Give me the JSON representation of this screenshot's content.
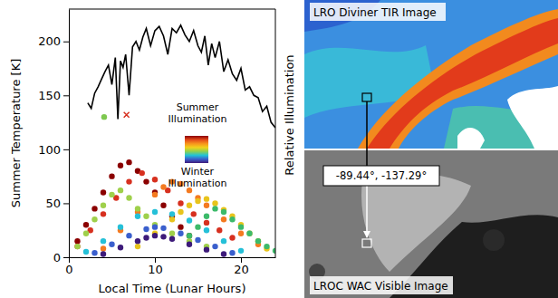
{
  "chart_data": {
    "type": "scatter",
    "xlabel": "Local Time (Lunar Hours)",
    "ylabel": "Summer Temperature [K]",
    "y2label": "Relative Illumination",
    "xlim": [
      0,
      24
    ],
    "xticks": [
      0,
      10,
      20
    ],
    "ylim": [
      0,
      230
    ],
    "yticks": [
      0,
      50,
      100,
      150,
      200
    ],
    "colorbar": {
      "top_label": [
        "Summer",
        "Illumination"
      ],
      "bottom_label": [
        "Winter",
        "Illumination"
      ],
      "colors": [
        "#8b0000",
        "#e34a1a",
        "#f7941d",
        "#f2d21b",
        "#8fd14f",
        "#22c3d6",
        "#3a5fcd",
        "#3d1a7a"
      ]
    },
    "series": [
      {
        "type": "line",
        "color": "#000000",
        "line_style": "solid",
        "x": [
          2.2,
          2.6,
          3.0,
          3.4,
          3.8,
          4.2,
          4.6,
          5.0,
          5.4,
          5.7,
          6.0,
          6.3,
          6.6,
          7.0,
          7.4,
          7.8,
          8.2,
          8.6,
          9.0,
          9.5,
          10.0,
          10.5,
          11.0,
          11.5,
          12.0,
          12.5,
          13.0,
          13.5,
          14.0,
          14.5,
          15.0,
          15.4,
          15.8,
          16.2,
          16.6,
          17.0,
          17.5,
          18.0,
          18.5,
          19.0,
          19.5,
          20.0,
          20.5,
          21.0,
          21.5,
          22.0,
          22.5,
          23.0,
          23.5,
          24.0
        ],
        "values": [
          143,
          138,
          152,
          158,
          165,
          172,
          178,
          160,
          185,
          128,
          182,
          176,
          188,
          150,
          195,
          200,
          192,
          204,
          212,
          196,
          210,
          214,
          205,
          188,
          212,
          208,
          215,
          206,
          200,
          210,
          196,
          190,
          205,
          178,
          198,
          185,
          200,
          172,
          183,
          170,
          164,
          175,
          155,
          158,
          150,
          148,
          135,
          140,
          125,
          120
        ]
      },
      {
        "type": "scatter",
        "color": "#8b0000",
        "marker": "circle",
        "x": [
          1,
          2,
          3,
          4,
          5,
          6,
          7,
          8,
          9,
          10,
          11,
          12,
          13,
          14
        ],
        "values": [
          15,
          30,
          45,
          60,
          75,
          85,
          88,
          80,
          70,
          60,
          48,
          38,
          28,
          20
        ]
      },
      {
        "type": "scatter",
        "color": "#d7301f",
        "marker": "circle",
        "x": [
          1,
          2.5,
          4,
          5.5,
          7,
          8.5,
          10,
          11.5,
          13,
          14.5,
          16,
          17.5,
          19
        ],
        "values": [
          10,
          25,
          40,
          55,
          70,
          78,
          72,
          62,
          50,
          40,
          32,
          25,
          18
        ]
      },
      {
        "type": "scatter",
        "color": "#f47a20",
        "marker": "circle",
        "x": [
          4,
          6,
          8,
          10,
          11,
          12,
          13,
          14,
          15,
          16,
          18,
          20,
          22
        ],
        "values": [
          8,
          25,
          42,
          58,
          65,
          70,
          68,
          62,
          55,
          48,
          35,
          22,
          12
        ]
      },
      {
        "type": "scatter",
        "color": "#e8c41c",
        "marker": "circle",
        "x": [
          8,
          10,
          12,
          13,
          14,
          15,
          16,
          17,
          18,
          19,
          20,
          21,
          22,
          23
        ],
        "values": [
          10,
          22,
          35,
          42,
          48,
          52,
          54,
          50,
          44,
          38,
          30,
          22,
          15,
          8
        ]
      },
      {
        "type": "scatter",
        "color": "#9fd04b",
        "marker": "circle",
        "x": [
          1,
          2,
          3,
          4,
          5,
          6,
          7,
          8,
          9,
          10,
          12,
          14,
          16
        ],
        "values": [
          10,
          22,
          35,
          48,
          58,
          62,
          55,
          45,
          38,
          30,
          22,
          15,
          10
        ]
      },
      {
        "type": "scatter",
        "color": "#3cba6a",
        "marker": "circle",
        "x": [
          14,
          15,
          16,
          17,
          18,
          19,
          20,
          21,
          22,
          23,
          24
        ],
        "values": [
          20,
          28,
          38,
          45,
          42,
          35,
          28,
          22,
          15,
          10,
          6
        ]
      },
      {
        "type": "scatter",
        "color": "#25c0d8",
        "marker": "circle",
        "x": [
          2,
          4,
          6,
          8,
          10,
          12,
          14,
          16,
          18,
          20
        ],
        "values": [
          5,
          15,
          28,
          38,
          42,
          40,
          34,
          25,
          15,
          6
        ]
      },
      {
        "type": "scatter",
        "color": "#3a5fcd",
        "marker": "circle",
        "x": [
          3,
          5,
          7,
          9,
          10,
          11,
          13,
          15,
          17,
          19
        ],
        "values": [
          4,
          12,
          20,
          26,
          28,
          27,
          22,
          16,
          10,
          4
        ]
      },
      {
        "type": "scatter",
        "color": "#3d1a7a",
        "marker": "circle",
        "x": [
          4,
          6,
          8,
          9,
          10,
          11,
          12,
          14,
          16,
          18
        ],
        "values": [
          3,
          9,
          15,
          18,
          20,
          19,
          17,
          12,
          7,
          3
        ]
      },
      {
        "type": "scatter",
        "color": "#7ec850",
        "marker": "circle",
        "x": [
          4.1
        ],
        "values": [
          130
        ]
      },
      {
        "type": "scatter",
        "color": "#d7301f",
        "marker": "x",
        "x": [
          6.7
        ],
        "values": [
          132
        ]
      }
    ]
  },
  "image_panels": {
    "titles": [
      "LRO Diviner TIR Image",
      "LROC WAC Visible Image"
    ],
    "location_label": "-89.44°, -137.29°"
  }
}
